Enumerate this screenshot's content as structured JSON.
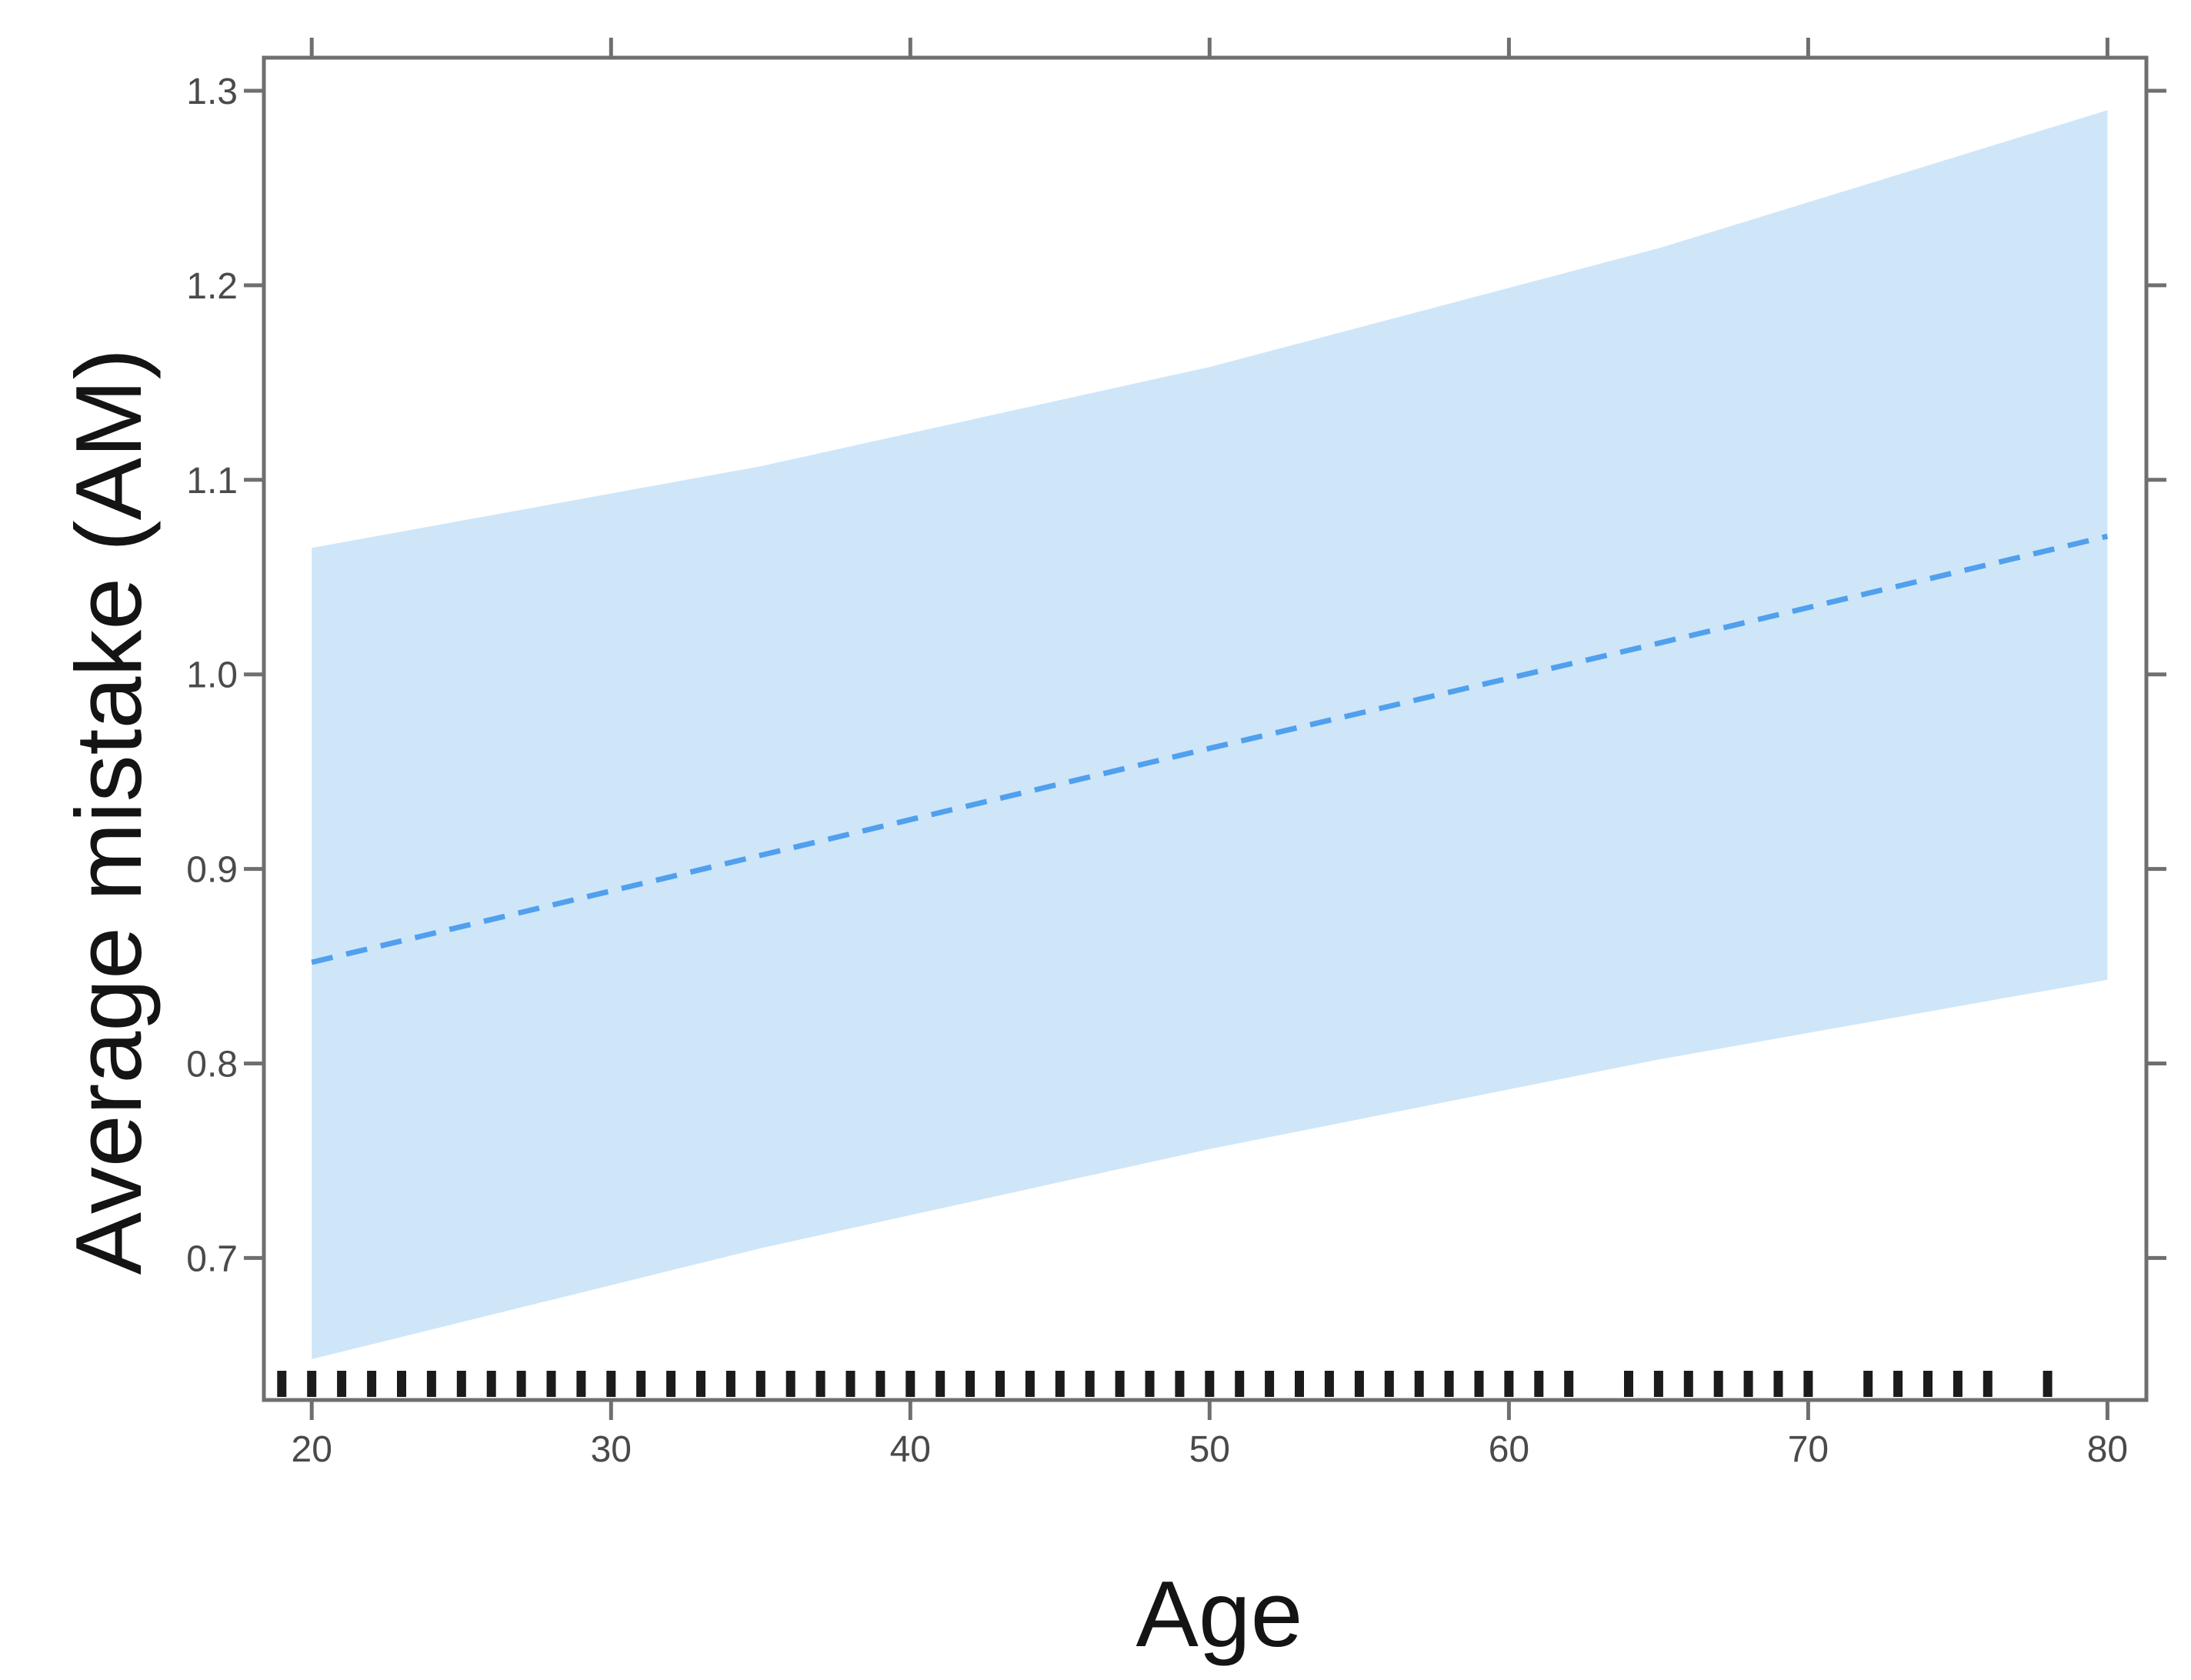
{
  "figure": {
    "background": "#ffffff",
    "description": "Scatterplot-style regression figure: fitted line of Average mistake (AM) on Age with confidence band and rug of observed ages"
  },
  "chart_data": {
    "type": "line",
    "title": "",
    "xlabel": "Age",
    "ylabel": "Average mistake (AM)",
    "xlim": [
      18.4,
      81.3
    ],
    "ylim": [
      0.627,
      1.317
    ],
    "x_ticks": [
      20,
      30,
      40,
      50,
      60,
      70,
      80
    ],
    "x_tick_labels": [
      "20",
      "30",
      "40",
      "50",
      "60",
      "70",
      "80"
    ],
    "y_ticks": [
      0.7,
      0.8,
      0.9,
      1.0,
      1.1,
      1.2,
      1.3
    ],
    "y_tick_labels": [
      "0.7",
      "0.8",
      "0.9",
      "1.0",
      "1.1",
      "1.2",
      "1.3"
    ],
    "grid": false,
    "legend": null,
    "series": [
      {
        "name": "fitted-regression-line",
        "type": "line",
        "style": "dashed",
        "color": "#50a0ee",
        "x": [
          20,
          35,
          50,
          65,
          80
        ],
        "y": [
          0.852,
          0.907,
          0.962,
          1.016,
          1.071
        ]
      },
      {
        "name": "confidence-band",
        "type": "band",
        "color": "#cfe6f9",
        "x": [
          20,
          35,
          50,
          65,
          80
        ],
        "upper": [
          1.065,
          1.107,
          1.158,
          1.219,
          1.29
        ],
        "lower": [
          0.648,
          0.705,
          0.756,
          0.802,
          0.843
        ]
      }
    ],
    "rug": {
      "color": "#1b1b1b",
      "ages": [
        19,
        20,
        21,
        22,
        23,
        24,
        25,
        26,
        27,
        28,
        29,
        30,
        31,
        32,
        33,
        34,
        35,
        36,
        37,
        38,
        39,
        40,
        41,
        42,
        43,
        44,
        45,
        46,
        47,
        48,
        49,
        50,
        51,
        52,
        53,
        54,
        55,
        56,
        57,
        58,
        59,
        60,
        61,
        62,
        64,
        65,
        66,
        67,
        68,
        69,
        70,
        72,
        73,
        74,
        75,
        76,
        78
      ]
    },
    "style": {
      "frame_color": "#6f6f6f",
      "tick_color": "#6f6f6f",
      "tick_label_color": "#4a4a4a",
      "title_color": "#141414",
      "line_width": 7,
      "dash_pattern": "28 18",
      "frame_width": 5
    }
  }
}
